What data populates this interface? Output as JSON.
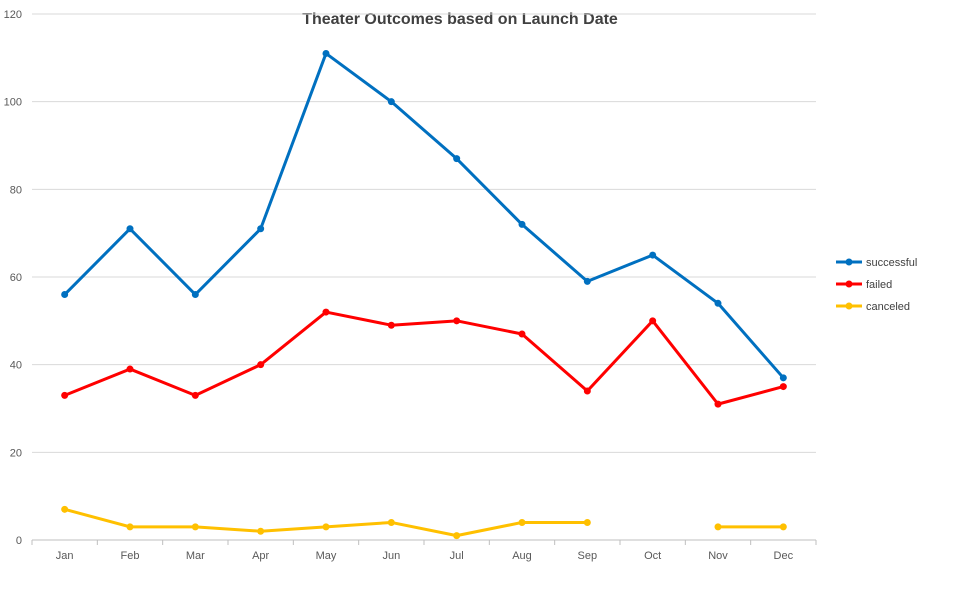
{
  "chart_data": {
    "type": "line",
    "title": "Theater Outcomes based on Launch Date",
    "categories": [
      "Jan",
      "Feb",
      "Mar",
      "Apr",
      "May",
      "Jun",
      "Jul",
      "Aug",
      "Sep",
      "Oct",
      "Nov",
      "Dec"
    ],
    "series": [
      {
        "name": "successful",
        "color": "#0070C0",
        "values": [
          56,
          71,
          56,
          71,
          111,
          100,
          87,
          72,
          59,
          65,
          54,
          37
        ]
      },
      {
        "name": "failed",
        "color": "#FF0000",
        "values": [
          33,
          39,
          33,
          40,
          52,
          49,
          50,
          47,
          34,
          50,
          31,
          35
        ]
      },
      {
        "name": "canceled",
        "color": "#FFC000",
        "values": [
          7,
          3,
          3,
          2,
          3,
          4,
          1,
          4,
          4,
          null,
          3,
          3
        ]
      }
    ],
    "ylim": [
      0,
      120
    ],
    "yticks": [
      0,
      20,
      40,
      60,
      80,
      100,
      120
    ],
    "grid": "horizontal",
    "legend_position": "right",
    "xlabel": "",
    "ylabel": ""
  }
}
